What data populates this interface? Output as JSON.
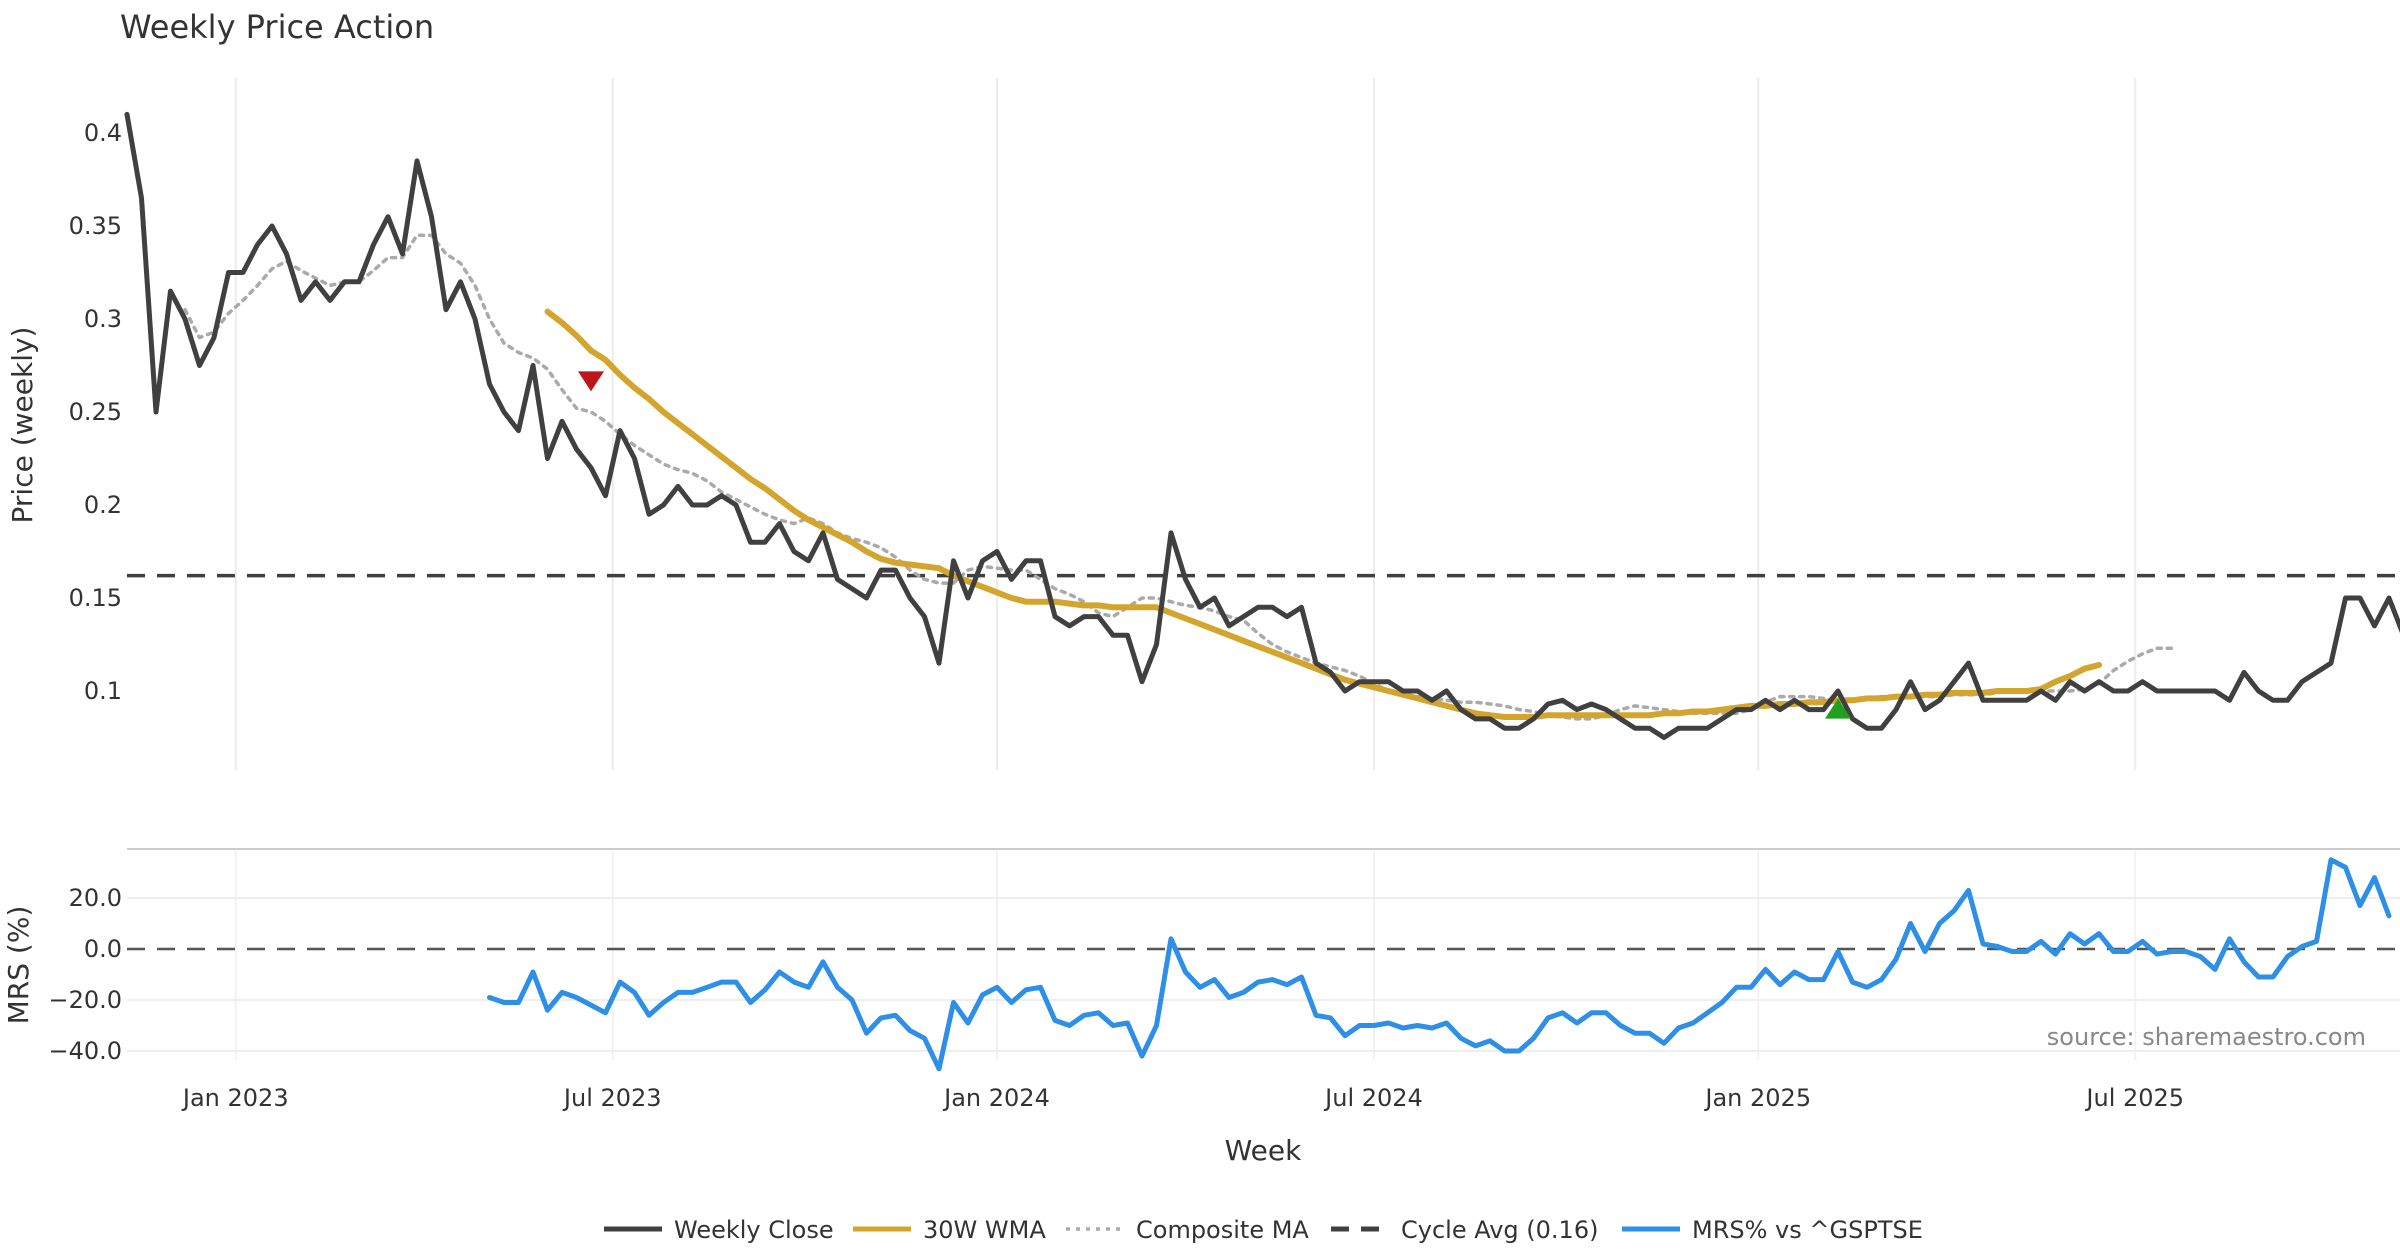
{
  "chart_data": [
    {
      "type": "line",
      "title": "Weekly Price Action",
      "xlabel": "",
      "ylabel": "Price (weekly)",
      "ylim": [
        0.055,
        0.42
      ],
      "y_ticks": [
        0.1,
        0.15,
        0.2,
        0.25,
        0.3,
        0.35,
        0.4
      ],
      "y_tick_labels": [
        "0.1",
        "0.15",
        "0.2",
        "0.25",
        "0.3",
        "0.35",
        "0.4"
      ],
      "series": [
        {
          "name": "Weekly Close",
          "color": "#404040",
          "style": "solid",
          "values": [
            0.41,
            0.365,
            0.25,
            0.315,
            0.3,
            0.275,
            0.29,
            0.325,
            0.325,
            0.34,
            0.35,
            0.335,
            0.31,
            0.32,
            0.31,
            0.32,
            0.32,
            0.34,
            0.355,
            0.335,
            0.385,
            0.355,
            0.305,
            0.32,
            0.3,
            0.265,
            0.25,
            0.24,
            0.275,
            0.225,
            0.245,
            0.23,
            0.22,
            0.205,
            0.24,
            0.225,
            0.195,
            0.2,
            0.21,
            0.2,
            0.2,
            0.205,
            0.2,
            0.18,
            0.18,
            0.19,
            0.175,
            0.17,
            0.185,
            0.16,
            0.155,
            0.15,
            0.165,
            0.165,
            0.15,
            0.14,
            0.115,
            0.17,
            0.15,
            0.17,
            0.175,
            0.16,
            0.17,
            0.17,
            0.14,
            0.135,
            0.14,
            0.14,
            0.13,
            0.13,
            0.105,
            0.125,
            0.185,
            0.16,
            0.145,
            0.15,
            0.135,
            0.14,
            0.145,
            0.145,
            0.14,
            0.145,
            0.115,
            0.11,
            0.1,
            0.105,
            0.105,
            0.105,
            0.1,
            0.1,
            0.095,
            0.1,
            0.09,
            0.085,
            0.085,
            0.08,
            0.08,
            0.085,
            0.093,
            0.095,
            0.09,
            0.093,
            0.09,
            0.085,
            0.08,
            0.08,
            0.075,
            0.08,
            0.08,
            0.08,
            0.085,
            0.09,
            0.09,
            0.095,
            0.09,
            0.095,
            0.09,
            0.09,
            0.1,
            0.085,
            0.08,
            0.08,
            0.09,
            0.105,
            0.09,
            0.095,
            0.105,
            0.115,
            0.095,
            0.095,
            0.095,
            0.095,
            0.1,
            0.095,
            0.105,
            0.1,
            0.105,
            0.1,
            0.1,
            0.105,
            0.1,
            0.1,
            0.1,
            0.1,
            0.1,
            0.095,
            0.11,
            0.1,
            0.095,
            0.095,
            0.105,
            0.11,
            0.115,
            0.15,
            0.15,
            0.135,
            0.15,
            0.13
          ]
        },
        {
          "name": "30W WMA",
          "color": "#D4A52C",
          "style": "solid",
          "values": [
            null,
            null,
            null,
            null,
            null,
            null,
            null,
            null,
            null,
            null,
            null,
            null,
            null,
            null,
            null,
            null,
            null,
            null,
            null,
            null,
            null,
            null,
            null,
            null,
            null,
            null,
            null,
            null,
            null,
            0.304,
            0.298,
            0.291,
            0.283,
            0.278,
            0.27,
            0.263,
            0.257,
            0.25,
            0.244,
            0.238,
            0.232,
            0.226,
            0.22,
            0.214,
            0.209,
            0.203,
            0.197,
            0.192,
            0.188,
            0.184,
            0.18,
            0.175,
            0.171,
            0.169,
            0.168,
            0.167,
            0.166,
            0.162,
            0.159,
            0.156,
            0.153,
            0.15,
            0.148,
            0.148,
            0.148,
            0.147,
            0.146,
            0.146,
            0.145,
            0.145,
            0.145,
            0.145,
            0.142,
            0.139,
            0.136,
            0.133,
            0.13,
            0.127,
            0.124,
            0.121,
            0.118,
            0.115,
            0.112,
            0.109,
            0.106,
            0.104,
            0.102,
            0.1,
            0.098,
            0.096,
            0.094,
            0.092,
            0.09,
            0.088,
            0.087,
            0.086,
            0.086,
            0.086,
            0.087,
            0.087,
            0.087,
            0.087,
            0.087,
            0.087,
            0.087,
            0.087,
            0.088,
            0.088,
            0.089,
            0.089,
            0.09,
            0.091,
            0.092,
            0.092,
            0.093,
            0.093,
            0.094,
            0.094,
            0.095,
            0.095,
            0.096,
            0.096,
            0.097,
            0.097,
            0.098,
            0.098,
            0.099,
            0.099,
            0.099,
            0.1,
            0.1,
            0.1,
            0.101,
            0.105,
            0.108,
            0.112,
            0.114
          ]
        },
        {
          "name": "Composite MA",
          "color": "#AAAAAA",
          "style": "dotted",
          "values": [
            null,
            null,
            null,
            null,
            0.305,
            0.29,
            0.293,
            0.303,
            0.31,
            0.318,
            0.327,
            0.331,
            0.326,
            0.322,
            0.318,
            0.32,
            0.32,
            0.326,
            0.333,
            0.333,
            0.345,
            0.345,
            0.335,
            0.33,
            0.318,
            0.3,
            0.287,
            0.282,
            0.279,
            0.273,
            0.262,
            0.252,
            0.25,
            0.245,
            0.238,
            0.232,
            0.227,
            0.222,
            0.219,
            0.217,
            0.213,
            0.207,
            0.203,
            0.199,
            0.195,
            0.192,
            0.19,
            0.193,
            0.19,
            0.185,
            0.182,
            0.18,
            0.177,
            0.172,
            0.165,
            0.16,
            0.158,
            0.158,
            0.165,
            0.167,
            0.166,
            0.165,
            0.165,
            0.16,
            0.155,
            0.152,
            0.148,
            0.142,
            0.14,
            0.145,
            0.15,
            0.15,
            0.148,
            0.146,
            0.145,
            0.143,
            0.14,
            0.138,
            0.131,
            0.125,
            0.121,
            0.118,
            0.115,
            0.113,
            0.111,
            0.108,
            0.104,
            0.1,
            0.098,
            0.097,
            0.096,
            0.095,
            0.094,
            0.094,
            0.093,
            0.092,
            0.09,
            0.089,
            0.087,
            0.086,
            0.085,
            0.085,
            0.087,
            0.09,
            0.092,
            0.091,
            0.09,
            0.089,
            0.088,
            0.088,
            0.088,
            0.088,
            0.09,
            0.094,
            0.097,
            0.097,
            0.097,
            0.096,
            0.095,
            0.095,
            0.096,
            0.097,
            0.097,
            0.097,
            0.097,
            0.097,
            0.098,
            0.098,
            0.098,
            0.099,
            0.1,
            0.1,
            0.1,
            0.1,
            0.1,
            0.101,
            0.104,
            0.111,
            0.116,
            0.12,
            0.123,
            0.123
          ]
        },
        {
          "name": "Cycle Avg (0.16)",
          "color": "#404040",
          "style": "dashed",
          "value": 0.162
        }
      ],
      "annotations": [
        {
          "type": "sell-marker",
          "shape": "down-triangle",
          "color": "#C0141C",
          "week": 32,
          "value": 0.267
        },
        {
          "type": "buy-marker",
          "shape": "up-triangle",
          "color": "#1FA01F",
          "week": 118,
          "value": 0.09
        }
      ],
      "x_ticks": [
        "Jan 2023",
        "Jul 2023",
        "Jan 2024",
        "Jul 2024",
        "Jan 2025",
        "Jul 2025"
      ],
      "x_tick_weeks": [
        7.5,
        33.5,
        60,
        86,
        112.5,
        138.5
      ],
      "grid": "x"
    },
    {
      "type": "line",
      "xlabel": "Week",
      "ylabel": "MRS (%)",
      "ylim": [
        -46,
        34
      ],
      "y_ticks": [
        20,
        0,
        -20,
        -40
      ],
      "y_tick_labels": [
        "20.0",
        "0.0",
        "−20.0",
        "−40.0"
      ],
      "x_ticks": [
        "Jan 2023",
        "Jul 2023",
        "Jan 2024",
        "Jul 2024",
        "Jan 2025",
        "Jul 2025"
      ],
      "zero_line": 0,
      "series": [
        {
          "name": "MRS% vs ^GSPTSE",
          "color": "#2E8FE6",
          "style": "solid",
          "start_week": 25,
          "values": [
            -19,
            -21,
            -21,
            -9,
            -24,
            -17,
            -19,
            -22,
            -25,
            -13,
            -17,
            -26,
            -21,
            -17,
            -17,
            -15,
            -13,
            -13,
            -21,
            -16,
            -9,
            -13,
            -15,
            -5,
            -15,
            -20,
            -33,
            -27,
            -26,
            -32,
            -35,
            -47,
            -21,
            -29,
            -18,
            -15,
            -21,
            -16,
            -15,
            -28,
            -30,
            -26,
            -25,
            -30,
            -29,
            -42,
            -30,
            4,
            -9,
            -15,
            -12,
            -19,
            -17,
            -13,
            -12,
            -14,
            -11,
            -26,
            -27,
            -34,
            -30,
            -30,
            -29,
            -31,
            -30,
            -31,
            -29,
            -35,
            -38,
            -36,
            -40,
            -40,
            -35,
            -27,
            -25,
            -29,
            -25,
            -25,
            -30,
            -33,
            -33,
            -37,
            -31,
            -29,
            -25,
            -21,
            -15,
            -15,
            -8,
            -14,
            -9,
            -12,
            -12,
            -1,
            -13,
            -15,
            -12,
            -4,
            10,
            -1,
            10,
            15,
            23,
            2,
            1,
            -1,
            -1,
            3,
            -2,
            6,
            2,
            6,
            -1,
            -1,
            3,
            -2,
            -1,
            -1,
            -3,
            -8,
            4,
            -5,
            -11,
            -11,
            -3,
            1,
            3,
            35,
            32,
            17,
            28,
            13
          ]
        }
      ],
      "annotation_text": "source: sharemaestro.com"
    }
  ],
  "title": "Weekly Price Action",
  "price_axis_label": "Price (weekly)",
  "mrs_axis_label": "MRS (%)",
  "x_axis_label": "Week",
  "source_note": "source: sharemaestro.com",
  "legend": [
    {
      "label": "Weekly Close",
      "color": "#404040",
      "style": "solid"
    },
    {
      "label": "30W WMA",
      "color": "#D4A52C",
      "style": "solid"
    },
    {
      "label": "Composite MA",
      "color": "#AAAAAA",
      "style": "dotted"
    },
    {
      "label": "Cycle Avg (0.16)",
      "color": "#404040",
      "style": "dashed"
    },
    {
      "label": "MRS% vs ^GSPTSE",
      "color": "#2E8FE6",
      "style": "solid"
    }
  ]
}
